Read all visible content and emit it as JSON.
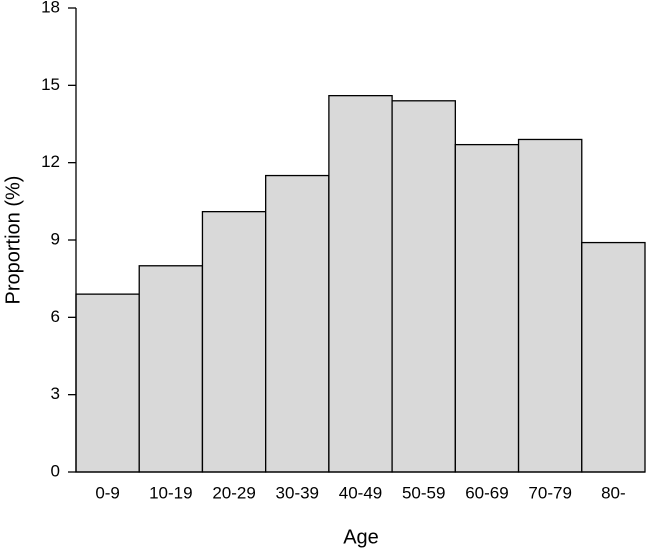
{
  "chart_data": {
    "type": "bar",
    "xlabel": "Age",
    "ylabel": "Proportion (%)",
    "categories": [
      "0-9",
      "10-19",
      "20-29",
      "30-39",
      "40-49",
      "50-59",
      "60-69",
      "70-79",
      "80-"
    ],
    "values": [
      6.9,
      8.0,
      10.1,
      11.5,
      14.6,
      14.4,
      12.7,
      12.9,
      8.9
    ],
    "color": "#d9d9d9",
    "ylim": [
      0,
      18
    ],
    "yticks": [
      0,
      3,
      6,
      9,
      12,
      15,
      18
    ],
    "grid": false
  }
}
